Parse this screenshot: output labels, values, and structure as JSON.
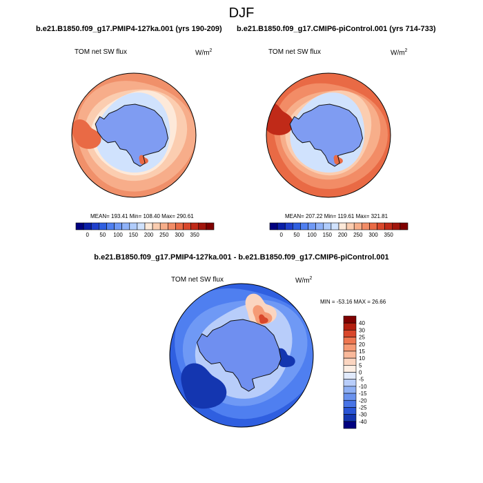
{
  "figure_title": "DJF",
  "units_base": "W/m",
  "units_sup": "2",
  "panels": [
    {
      "run_title": "b.e21.B1850.f09_g17.PMIP4-127ka.001 (yrs 190-209)",
      "variable": "TOM net SW flux",
      "stats": "MEAN= 193.41  Min= 108.40  Max= 290.61"
    },
    {
      "run_title": "b.e21.B1850.f09_g17.CMIP6-piControl.001 (yrs 714-733)",
      "variable": "TOM net SW flux",
      "stats": "MEAN= 207.22  Min= 119.61  Max= 321.81"
    },
    {
      "run_title": "b.e21.B1850.f09_g17.PMIP4-127ka.001 - b.e21.B1850.f09_g17.CMIP6-piControl.001",
      "variable": "TOM net SW flux",
      "stats": "MIN = -53.16 MAX =  26.66"
    }
  ],
  "chart_data": [
    {
      "type": "heatmap",
      "projection": "south-polar-stereographic",
      "title": "TOM net SW flux",
      "run": "b.e21.B1850.f09_g17.PMIP4-127ka.001 (yrs 190-209)",
      "units": "W/m2",
      "stats": {
        "mean": 193.41,
        "min": 108.4,
        "max": 290.61
      },
      "colorbar": {
        "orientation": "horizontal",
        "tick_labels": [
          "0",
          "50",
          "100",
          "150",
          "200",
          "250",
          "300",
          "350"
        ],
        "colors": [
          "#00007f",
          "#0a1fa8",
          "#1f3fcc",
          "#2f5fe0",
          "#4f7ff0",
          "#6f99f5",
          "#8fb2f8",
          "#b0ccfb",
          "#d0e2fd",
          "#fde9d9",
          "#fbcdb0",
          "#f7ae8a",
          "#f28c66",
          "#e96a45",
          "#d9472b",
          "#c02a18",
          "#a2150c",
          "#7f0000"
        ]
      }
    },
    {
      "type": "heatmap",
      "projection": "south-polar-stereographic",
      "title": "TOM net SW flux",
      "run": "b.e21.B1850.f09_g17.CMIP6-piControl.001 (yrs 714-733)",
      "units": "W/m2",
      "stats": {
        "mean": 207.22,
        "min": 119.61,
        "max": 321.81
      },
      "colorbar": {
        "orientation": "horizontal",
        "tick_labels": [
          "0",
          "50",
          "100",
          "150",
          "200",
          "250",
          "300",
          "350"
        ],
        "colors": [
          "#00007f",
          "#0a1fa8",
          "#1f3fcc",
          "#2f5fe0",
          "#4f7ff0",
          "#6f99f5",
          "#8fb2f8",
          "#b0ccfb",
          "#d0e2fd",
          "#fde9d9",
          "#fbcdb0",
          "#f7ae8a",
          "#f28c66",
          "#e96a45",
          "#d9472b",
          "#c02a18",
          "#a2150c",
          "#7f0000"
        ]
      }
    },
    {
      "type": "heatmap",
      "projection": "south-polar-stereographic",
      "title": "TOM net SW flux",
      "run": "b.e21.B1850.f09_g17.PMIP4-127ka.001 - b.e21.B1850.f09_g17.CMIP6-piControl.001",
      "units": "W/m2",
      "stats": {
        "min": -53.16,
        "max": 26.66
      },
      "colorbar": {
        "orientation": "vertical",
        "tick_labels": [
          "40",
          "30",
          "25",
          "20",
          "15",
          "10",
          "5",
          "0",
          "-5",
          "-10",
          "-15",
          "-20",
          "-25",
          "-30",
          "-40"
        ],
        "colors": [
          "#7f0000",
          "#b31e0f",
          "#d9472b",
          "#ee7650",
          "#f59a75",
          "#f9b99b",
          "#fbd5c0",
          "#fdeee3",
          "#e1eafc",
          "#b8cdfa",
          "#8fb0f4",
          "#6a92ee",
          "#4874e6",
          "#2a55d6",
          "#1436b0",
          "#00007f"
        ]
      }
    }
  ]
}
